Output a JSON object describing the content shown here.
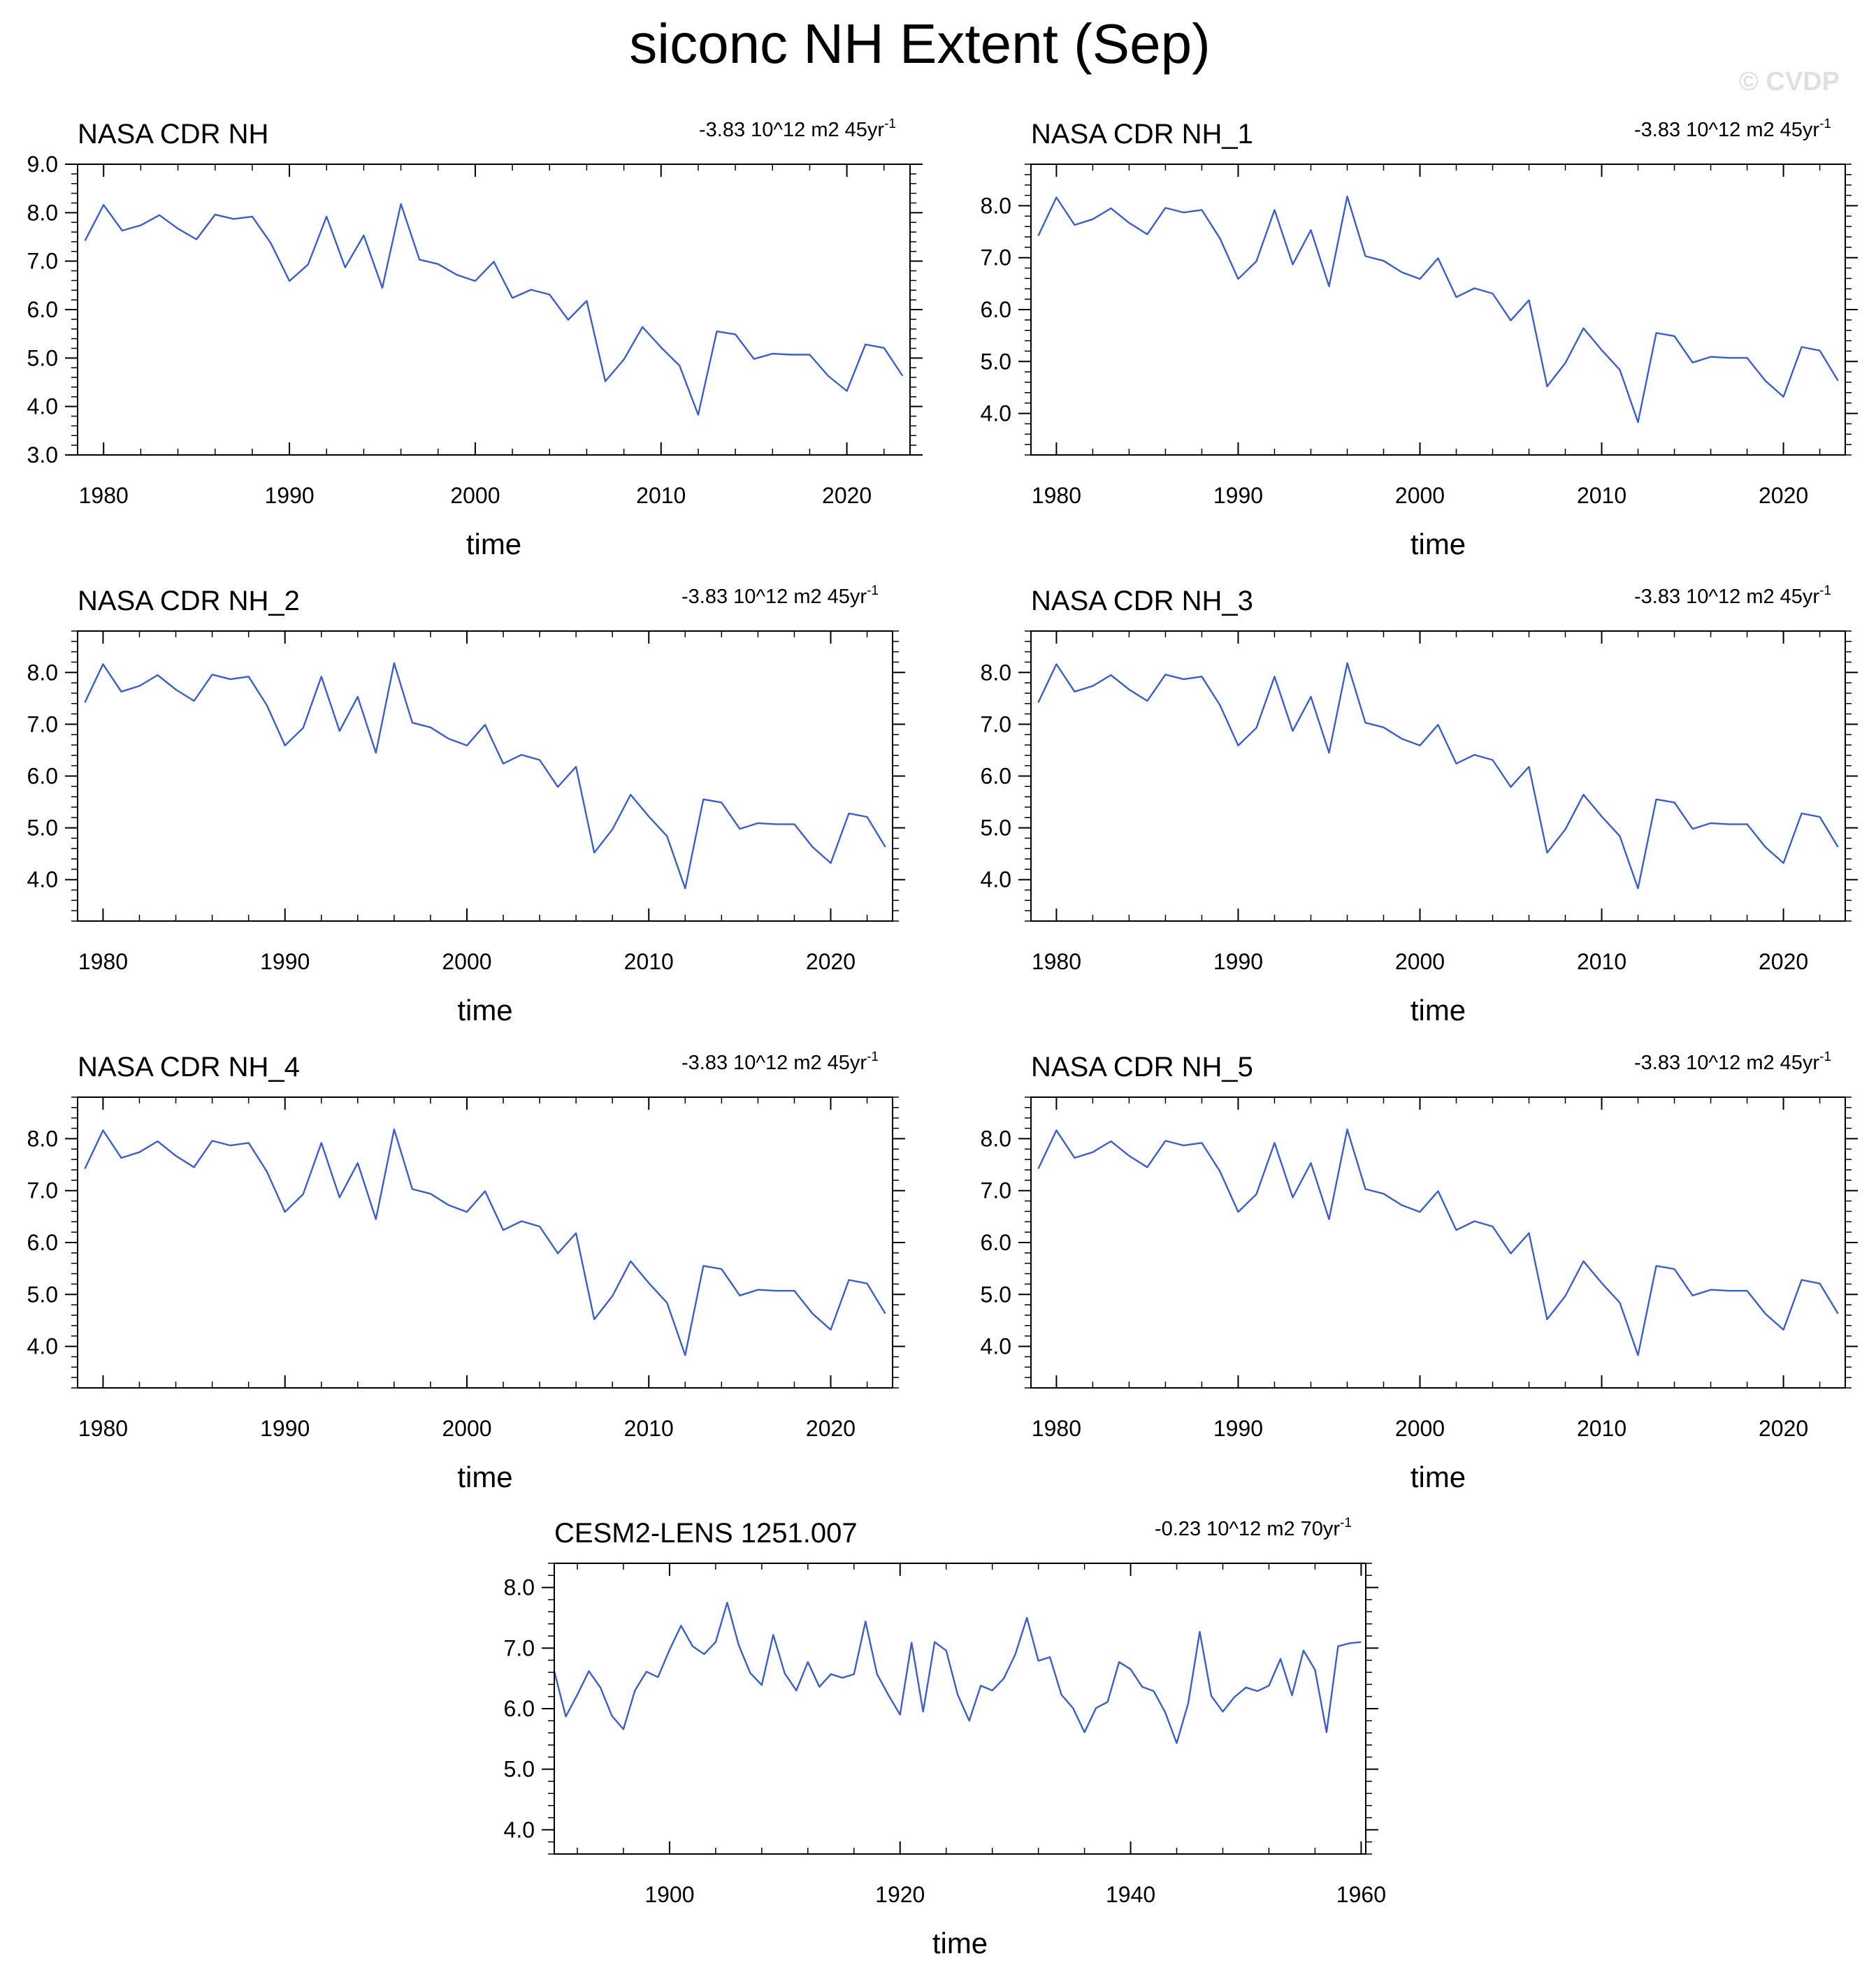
{
  "figure": {
    "title": "siconc NH Extent (Sep)",
    "watermark": "© CVDP",
    "line_color": "#3a5fcd"
  },
  "chart_data": [
    {
      "type": "line",
      "title": "NASA CDR NH",
      "trend": {
        "value": "-3.83 10^12 m2 45yr",
        "exponent": "-1"
      },
      "xlabel": "time",
      "ylabel": "",
      "xlim": [
        1978.6,
        2023.4
      ],
      "ylim": [
        3.0,
        9.0
      ],
      "xticks": [
        1980,
        1990,
        2000,
        2010,
        2020
      ],
      "yticks": [
        3.0,
        4.0,
        5.0,
        6.0,
        7.0,
        8.0,
        9.0
      ],
      "x": [
        1979,
        1980,
        1981,
        1982,
        1983,
        1984,
        1985,
        1986,
        1987,
        1988,
        1989,
        1990,
        1991,
        1992,
        1993,
        1994,
        1995,
        1996,
        1997,
        1998,
        1999,
        2000,
        2001,
        2002,
        2003,
        2004,
        2005,
        2006,
        2007,
        2008,
        2009,
        2010,
        2011,
        2012,
        2013,
        2014,
        2015,
        2016,
        2017,
        2018,
        2019,
        2020,
        2021,
        2022,
        2023
      ],
      "values": [
        7.42,
        8.16,
        7.63,
        7.74,
        7.95,
        7.67,
        7.45,
        7.96,
        7.87,
        7.92,
        7.37,
        6.59,
        6.93,
        7.92,
        6.87,
        7.53,
        6.45,
        8.18,
        7.03,
        6.94,
        6.72,
        6.59,
        6.99,
        6.24,
        6.41,
        6.31,
        5.79,
        6.18,
        4.52,
        4.97,
        5.64,
        5.22,
        4.84,
        3.83,
        5.55,
        5.49,
        4.98,
        5.09,
        5.07,
        5.07,
        4.63,
        4.32,
        5.28,
        5.21,
        4.63
      ]
    },
    {
      "type": "line",
      "title": "NASA CDR NH_1",
      "trend": {
        "value": "-3.83 10^12 m2 45yr",
        "exponent": "-1"
      },
      "xlabel": "time",
      "ylabel": "",
      "xlim": [
        1978.6,
        2023.4
      ],
      "ylim": [
        3.2,
        8.8
      ],
      "xticks": [
        1980,
        1990,
        2000,
        2010,
        2020
      ],
      "yticks": [
        4.0,
        5.0,
        6.0,
        7.0,
        8.0
      ],
      "x": [
        1979,
        1980,
        1981,
        1982,
        1983,
        1984,
        1985,
        1986,
        1987,
        1988,
        1989,
        1990,
        1991,
        1992,
        1993,
        1994,
        1995,
        1996,
        1997,
        1998,
        1999,
        2000,
        2001,
        2002,
        2003,
        2004,
        2005,
        2006,
        2007,
        2008,
        2009,
        2010,
        2011,
        2012,
        2013,
        2014,
        2015,
        2016,
        2017,
        2018,
        2019,
        2020,
        2021,
        2022,
        2023
      ],
      "values": [
        7.42,
        8.16,
        7.63,
        7.74,
        7.95,
        7.67,
        7.45,
        7.96,
        7.87,
        7.92,
        7.37,
        6.59,
        6.93,
        7.92,
        6.87,
        7.53,
        6.45,
        8.18,
        7.03,
        6.94,
        6.72,
        6.59,
        6.99,
        6.24,
        6.41,
        6.31,
        5.79,
        6.18,
        4.52,
        4.97,
        5.64,
        5.22,
        4.84,
        3.83,
        5.55,
        5.49,
        4.98,
        5.09,
        5.07,
        5.07,
        4.63,
        4.32,
        5.28,
        5.21,
        4.63
      ]
    },
    {
      "type": "line",
      "title": "NASA CDR NH_2",
      "trend": {
        "value": "-3.83 10^12 m2 45yr",
        "exponent": "-1"
      },
      "xlabel": "time",
      "ylabel": "",
      "xlim": [
        1978.6,
        2023.4
      ],
      "ylim": [
        3.2,
        8.8
      ],
      "xticks": [
        1980,
        1990,
        2000,
        2010,
        2020
      ],
      "yticks": [
        4.0,
        5.0,
        6.0,
        7.0,
        8.0
      ],
      "x": [
        1979,
        1980,
        1981,
        1982,
        1983,
        1984,
        1985,
        1986,
        1987,
        1988,
        1989,
        1990,
        1991,
        1992,
        1993,
        1994,
        1995,
        1996,
        1997,
        1998,
        1999,
        2000,
        2001,
        2002,
        2003,
        2004,
        2005,
        2006,
        2007,
        2008,
        2009,
        2010,
        2011,
        2012,
        2013,
        2014,
        2015,
        2016,
        2017,
        2018,
        2019,
        2020,
        2021,
        2022,
        2023
      ],
      "values": [
        7.42,
        8.16,
        7.63,
        7.74,
        7.95,
        7.67,
        7.45,
        7.96,
        7.87,
        7.92,
        7.37,
        6.59,
        6.93,
        7.92,
        6.87,
        7.53,
        6.45,
        8.18,
        7.03,
        6.94,
        6.72,
        6.59,
        6.99,
        6.24,
        6.41,
        6.31,
        5.79,
        6.18,
        4.52,
        4.97,
        5.64,
        5.22,
        4.84,
        3.83,
        5.55,
        5.49,
        4.98,
        5.09,
        5.07,
        5.07,
        4.63,
        4.32,
        5.28,
        5.21,
        4.63
      ]
    },
    {
      "type": "line",
      "title": "NASA CDR NH_3",
      "trend": {
        "value": "-3.83 10^12 m2 45yr",
        "exponent": "-1"
      },
      "xlabel": "time",
      "ylabel": "",
      "xlim": [
        1978.6,
        2023.4
      ],
      "ylim": [
        3.2,
        8.8
      ],
      "xticks": [
        1980,
        1990,
        2000,
        2010,
        2020
      ],
      "yticks": [
        4.0,
        5.0,
        6.0,
        7.0,
        8.0
      ],
      "x": [
        1979,
        1980,
        1981,
        1982,
        1983,
        1984,
        1985,
        1986,
        1987,
        1988,
        1989,
        1990,
        1991,
        1992,
        1993,
        1994,
        1995,
        1996,
        1997,
        1998,
        1999,
        2000,
        2001,
        2002,
        2003,
        2004,
        2005,
        2006,
        2007,
        2008,
        2009,
        2010,
        2011,
        2012,
        2013,
        2014,
        2015,
        2016,
        2017,
        2018,
        2019,
        2020,
        2021,
        2022,
        2023
      ],
      "values": [
        7.42,
        8.16,
        7.63,
        7.74,
        7.95,
        7.67,
        7.45,
        7.96,
        7.87,
        7.92,
        7.37,
        6.59,
        6.93,
        7.92,
        6.87,
        7.53,
        6.45,
        8.18,
        7.03,
        6.94,
        6.72,
        6.59,
        6.99,
        6.24,
        6.41,
        6.31,
        5.79,
        6.18,
        4.52,
        4.97,
        5.64,
        5.22,
        4.84,
        3.83,
        5.55,
        5.49,
        4.98,
        5.09,
        5.07,
        5.07,
        4.63,
        4.32,
        5.28,
        5.21,
        4.63
      ]
    },
    {
      "type": "line",
      "title": "NASA CDR NH_4",
      "trend": {
        "value": "-3.83 10^12 m2 45yr",
        "exponent": "-1"
      },
      "xlabel": "time",
      "ylabel": "",
      "xlim": [
        1978.6,
        2023.4
      ],
      "ylim": [
        3.2,
        8.8
      ],
      "xticks": [
        1980,
        1990,
        2000,
        2010,
        2020
      ],
      "yticks": [
        4.0,
        5.0,
        6.0,
        7.0,
        8.0
      ],
      "x": [
        1979,
        1980,
        1981,
        1982,
        1983,
        1984,
        1985,
        1986,
        1987,
        1988,
        1989,
        1990,
        1991,
        1992,
        1993,
        1994,
        1995,
        1996,
        1997,
        1998,
        1999,
        2000,
        2001,
        2002,
        2003,
        2004,
        2005,
        2006,
        2007,
        2008,
        2009,
        2010,
        2011,
        2012,
        2013,
        2014,
        2015,
        2016,
        2017,
        2018,
        2019,
        2020,
        2021,
        2022,
        2023
      ],
      "values": [
        7.42,
        8.16,
        7.63,
        7.74,
        7.95,
        7.67,
        7.45,
        7.96,
        7.87,
        7.92,
        7.37,
        6.59,
        6.93,
        7.92,
        6.87,
        7.53,
        6.45,
        8.18,
        7.03,
        6.94,
        6.72,
        6.59,
        6.99,
        6.24,
        6.41,
        6.31,
        5.79,
        6.18,
        4.52,
        4.97,
        5.64,
        5.22,
        4.84,
        3.83,
        5.55,
        5.49,
        4.98,
        5.09,
        5.07,
        5.07,
        4.63,
        4.32,
        5.28,
        5.21,
        4.63
      ]
    },
    {
      "type": "line",
      "title": "NASA CDR NH_5",
      "trend": {
        "value": "-3.83 10^12 m2 45yr",
        "exponent": "-1"
      },
      "xlabel": "time",
      "ylabel": "",
      "xlim": [
        1978.6,
        2023.4
      ],
      "ylim": [
        3.2,
        8.8
      ],
      "xticks": [
        1980,
        1990,
        2000,
        2010,
        2020
      ],
      "yticks": [
        4.0,
        5.0,
        6.0,
        7.0,
        8.0
      ],
      "x": [
        1979,
        1980,
        1981,
        1982,
        1983,
        1984,
        1985,
        1986,
        1987,
        1988,
        1989,
        1990,
        1991,
        1992,
        1993,
        1994,
        1995,
        1996,
        1997,
        1998,
        1999,
        2000,
        2001,
        2002,
        2003,
        2004,
        2005,
        2006,
        2007,
        2008,
        2009,
        2010,
        2011,
        2012,
        2013,
        2014,
        2015,
        2016,
        2017,
        2018,
        2019,
        2020,
        2021,
        2022,
        2023
      ],
      "values": [
        7.42,
        8.16,
        7.63,
        7.74,
        7.95,
        7.67,
        7.45,
        7.96,
        7.87,
        7.92,
        7.37,
        6.59,
        6.93,
        7.92,
        6.87,
        7.53,
        6.45,
        8.18,
        7.03,
        6.94,
        6.72,
        6.59,
        6.99,
        6.24,
        6.41,
        6.31,
        5.79,
        6.18,
        4.52,
        4.97,
        5.64,
        5.22,
        4.84,
        3.83,
        5.55,
        5.49,
        4.98,
        5.09,
        5.07,
        5.07,
        4.63,
        4.32,
        5.28,
        5.21,
        4.63
      ]
    },
    {
      "type": "line",
      "title": "CESM2-LENS 1251.007",
      "trend": {
        "value": "-0.23 10^12 m2 70yr",
        "exponent": "-1"
      },
      "xlabel": "time",
      "ylabel": "",
      "xlim": [
        1890,
        1960.4
      ],
      "ylim": [
        3.6,
        8.4
      ],
      "xticks": [
        1900,
        1920,
        1940,
        1960
      ],
      "yticks": [
        4.0,
        5.0,
        6.0,
        7.0,
        8.0
      ],
      "x": [
        1890,
        1891,
        1892,
        1893,
        1894,
        1895,
        1896,
        1897,
        1898,
        1899,
        1900,
        1901,
        1902,
        1903,
        1904,
        1905,
        1906,
        1907,
        1908,
        1909,
        1910,
        1911,
        1912,
        1913,
        1914,
        1915,
        1916,
        1917,
        1918,
        1919,
        1920,
        1921,
        1922,
        1923,
        1924,
        1925,
        1926,
        1927,
        1928,
        1929,
        1930,
        1931,
        1932,
        1933,
        1934,
        1935,
        1936,
        1937,
        1938,
        1939,
        1940,
        1941,
        1942,
        1943,
        1944,
        1945,
        1946,
        1947,
        1948,
        1949,
        1950,
        1951,
        1952,
        1953,
        1954,
        1955,
        1956,
        1957,
        1958,
        1959,
        1960
      ],
      "values": [
        6.62,
        5.87,
        6.23,
        6.62,
        6.35,
        5.88,
        5.66,
        6.3,
        6.61,
        6.52,
        6.97,
        7.37,
        7.03,
        6.9,
        7.1,
        7.75,
        7.05,
        6.59,
        6.39,
        7.22,
        6.58,
        6.3,
        6.77,
        6.36,
        6.57,
        6.51,
        6.57,
        7.44,
        6.57,
        6.22,
        5.9,
        7.09,
        5.95,
        7.1,
        6.96,
        6.23,
        5.8,
        6.38,
        6.3,
        6.5,
        6.9,
        7.5,
        6.79,
        6.85,
        6.23,
        6.01,
        5.61,
        6.01,
        6.11,
        6.77,
        6.65,
        6.36,
        6.29,
        5.94,
        5.43,
        6.09,
        7.27,
        6.21,
        5.95,
        6.19,
        6.35,
        6.29,
        6.38,
        6.82,
        6.22,
        6.96,
        6.64,
        5.61,
        7.03,
        7.08,
        7.1
      ]
    }
  ]
}
